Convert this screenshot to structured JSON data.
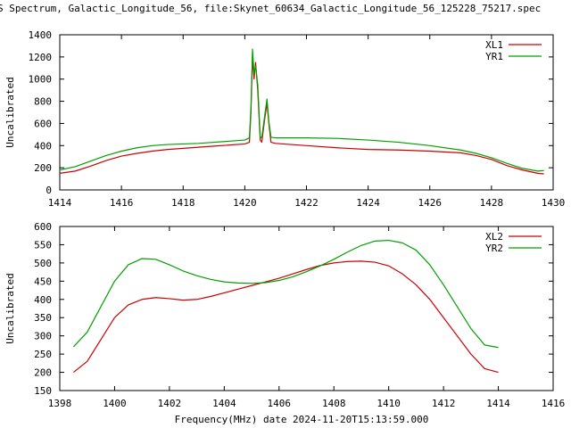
{
  "title": "S Spectrum, Galactic_Longitude_56, file:Skynet_60634_Galactic_Longitude_56_125228_75217.spec",
  "footer_label": "Frequency(MHz) date 2024-11-20T15:13:59.000",
  "chart_data": [
    {
      "type": "line",
      "ylabel": "Uncalibrated",
      "xlim": [
        1414,
        1430
      ],
      "ylim": [
        0,
        1400
      ],
      "xticks": [
        1414,
        1416,
        1418,
        1420,
        1422,
        1424,
        1426,
        1428,
        1430
      ],
      "yticks": [
        0,
        200,
        400,
        600,
        800,
        1000,
        1200,
        1400
      ],
      "legend_position": "top-right",
      "series": [
        {
          "name": "XL1",
          "color": "#cc0000",
          "points": [
            [
              1414.0,
              150
            ],
            [
              1414.5,
              170
            ],
            [
              1415,
              215
            ],
            [
              1415.5,
              265
            ],
            [
              1416,
              305
            ],
            [
              1416.5,
              330
            ],
            [
              1417,
              350
            ],
            [
              1417.5,
              365
            ],
            [
              1418,
              375
            ],
            [
              1418.5,
              385
            ],
            [
              1419,
              395
            ],
            [
              1419.5,
              405
            ],
            [
              1420.0,
              415
            ],
            [
              1420.15,
              430
            ],
            [
              1420.2,
              700
            ],
            [
              1420.25,
              1200
            ],
            [
              1420.3,
              1000
            ],
            [
              1420.35,
              1150
            ],
            [
              1420.42,
              900
            ],
            [
              1420.5,
              450
            ],
            [
              1420.55,
              430
            ],
            [
              1420.65,
              650
            ],
            [
              1420.72,
              780
            ],
            [
              1420.78,
              600
            ],
            [
              1420.85,
              430
            ],
            [
              1421,
              420
            ],
            [
              1422,
              400
            ],
            [
              1423,
              380
            ],
            [
              1424,
              365
            ],
            [
              1425,
              360
            ],
            [
              1426,
              350
            ],
            [
              1427,
              335
            ],
            [
              1427.5,
              310
            ],
            [
              1428,
              275
            ],
            [
              1428.5,
              220
            ],
            [
              1429,
              180
            ],
            [
              1429.5,
              150
            ],
            [
              1429.7,
              145
            ]
          ]
        },
        {
          "name": "YR1",
          "color": "#00a000",
          "points": [
            [
              1414.0,
              180
            ],
            [
              1414.5,
              210
            ],
            [
              1415,
              260
            ],
            [
              1415.5,
              310
            ],
            [
              1416,
              350
            ],
            [
              1416.5,
              380
            ],
            [
              1417,
              400
            ],
            [
              1417.5,
              410
            ],
            [
              1418,
              415
            ],
            [
              1418.5,
              420
            ],
            [
              1419,
              430
            ],
            [
              1419.5,
              440
            ],
            [
              1420.0,
              450
            ],
            [
              1420.15,
              470
            ],
            [
              1420.2,
              750
            ],
            [
              1420.25,
              1270
            ],
            [
              1420.3,
              1050
            ],
            [
              1420.35,
              1120
            ],
            [
              1420.42,
              950
            ],
            [
              1420.5,
              480
            ],
            [
              1420.55,
              470
            ],
            [
              1420.65,
              680
            ],
            [
              1420.72,
              820
            ],
            [
              1420.78,
              620
            ],
            [
              1420.85,
              475
            ],
            [
              1421,
              470
            ],
            [
              1422,
              470
            ],
            [
              1423,
              465
            ],
            [
              1424,
              450
            ],
            [
              1425,
              430
            ],
            [
              1426,
              400
            ],
            [
              1427,
              360
            ],
            [
              1427.5,
              330
            ],
            [
              1428,
              290
            ],
            [
              1428.5,
              240
            ],
            [
              1429,
              195
            ],
            [
              1429.5,
              170
            ],
            [
              1429.7,
              175
            ]
          ]
        }
      ]
    },
    {
      "type": "line",
      "ylabel": "Uncalibrated",
      "xlim": [
        1398,
        1416
      ],
      "ylim": [
        150,
        600
      ],
      "xticks": [
        1398,
        1400,
        1402,
        1404,
        1406,
        1408,
        1410,
        1412,
        1414,
        1416
      ],
      "yticks": [
        150,
        200,
        250,
        300,
        350,
        400,
        450,
        500,
        550,
        600
      ],
      "legend_position": "top-right",
      "series": [
        {
          "name": "XL2",
          "color": "#cc0000",
          "points": [
            [
              1398.5,
              200
            ],
            [
              1399,
              230
            ],
            [
              1399.5,
              290
            ],
            [
              1400,
              350
            ],
            [
              1400.5,
              385
            ],
            [
              1401,
              400
            ],
            [
              1401.5,
              405
            ],
            [
              1402,
              402
            ],
            [
              1402.5,
              398
            ],
            [
              1403,
              400
            ],
            [
              1403.5,
              408
            ],
            [
              1404,
              418
            ],
            [
              1404.5,
              428
            ],
            [
              1405,
              438
            ],
            [
              1405.5,
              448
            ],
            [
              1406,
              458
            ],
            [
              1406.5,
              470
            ],
            [
              1407,
              482
            ],
            [
              1407.5,
              493
            ],
            [
              1408,
              500
            ],
            [
              1408.5,
              504
            ],
            [
              1409,
              505
            ],
            [
              1409.5,
              502
            ],
            [
              1410,
              492
            ],
            [
              1410.5,
              470
            ],
            [
              1411,
              440
            ],
            [
              1411.5,
              400
            ],
            [
              1412,
              350
            ],
            [
              1412.5,
              300
            ],
            [
              1413,
              250
            ],
            [
              1413.5,
              210
            ],
            [
              1414,
              200
            ]
          ]
        },
        {
          "name": "YR2",
          "color": "#00a000",
          "points": [
            [
              1398.5,
              270
            ],
            [
              1399,
              310
            ],
            [
              1399.5,
              380
            ],
            [
              1400,
              450
            ],
            [
              1400.5,
              495
            ],
            [
              1401,
              512
            ],
            [
              1401.5,
              510
            ],
            [
              1402,
              495
            ],
            [
              1402.5,
              478
            ],
            [
              1403,
              465
            ],
            [
              1403.5,
              455
            ],
            [
              1404,
              448
            ],
            [
              1404.5,
              445
            ],
            [
              1405,
              444
            ],
            [
              1405.5,
              446
            ],
            [
              1406,
              452
            ],
            [
              1406.5,
              462
            ],
            [
              1407,
              476
            ],
            [
              1407.5,
              492
            ],
            [
              1408,
              510
            ],
            [
              1408.5,
              530
            ],
            [
              1409,
              548
            ],
            [
              1409.5,
              560
            ],
            [
              1410,
              562
            ],
            [
              1410.5,
              555
            ],
            [
              1411,
              535
            ],
            [
              1411.5,
              495
            ],
            [
              1412,
              440
            ],
            [
              1412.5,
              380
            ],
            [
              1413,
              320
            ],
            [
              1413.5,
              275
            ],
            [
              1414,
              268
            ]
          ]
        }
      ]
    }
  ]
}
